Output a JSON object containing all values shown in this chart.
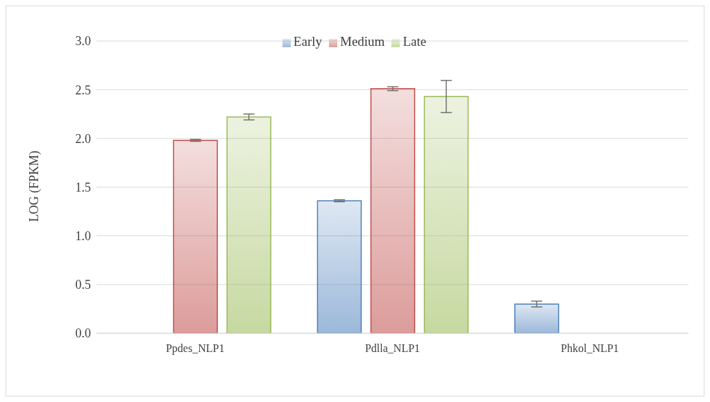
{
  "chart_data": {
    "type": "bar",
    "ylabel": "LOG (FPKM)",
    "categories": [
      "Ppdes_NLP1",
      "Pdlla_NLP1",
      "Phkol_NLP1"
    ],
    "series": [
      {
        "name": "Early",
        "color": "#4a7ebb",
        "values": [
          0,
          1.36,
          0.3
        ],
        "errors": [
          null,
          0.01,
          0.03
        ]
      },
      {
        "name": "Medium",
        "color": "#be4b48",
        "values": [
          1.98,
          2.51,
          0
        ],
        "errors": [
          0.01,
          0.02,
          null
        ]
      },
      {
        "name": "Late",
        "color": "#98b954",
        "values": [
          2.22,
          2.43,
          0
        ],
        "errors": [
          0.03,
          0.165,
          null
        ]
      }
    ],
    "ylim": [
      0,
      3
    ],
    "yticks": [
      {
        "value": 0,
        "label": "0.0"
      },
      0.5,
      {
        "value": 1,
        "label": "1.0"
      },
      1.5,
      {
        "value": 2,
        "label": "2.0"
      },
      2.5,
      {
        "value": 3,
        "label": "3.0"
      }
    ],
    "grid": "y",
    "legend": "top"
  }
}
